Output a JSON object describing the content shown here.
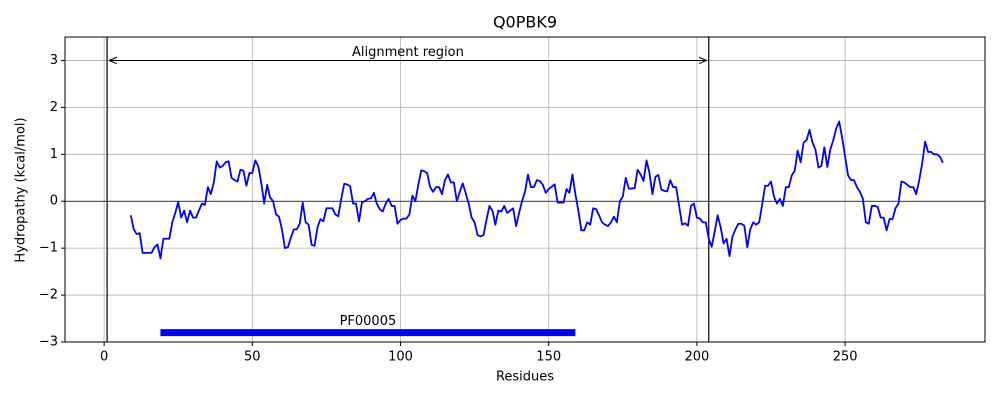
{
  "chart_data": {
    "type": "line",
    "title": "Q0PBK9",
    "x_label": "Residues",
    "y_label": "Hydropathy (kcal/mol)",
    "x": [
      9,
      10,
      11,
      12,
      13,
      14,
      15,
      16,
      17,
      18,
      19,
      20,
      21,
      22,
      23,
      24,
      25,
      26,
      27,
      28,
      29,
      30,
      31,
      32,
      33,
      34,
      35,
      36,
      37,
      38,
      39,
      40,
      41,
      42,
      43,
      44,
      45,
      46,
      47,
      48,
      49,
      50,
      51,
      52,
      53,
      54,
      55,
      56,
      57,
      58,
      59,
      60,
      61,
      62,
      63,
      64,
      65,
      66,
      67,
      68,
      69,
      70,
      71,
      72,
      73,
      74,
      75,
      76,
      77,
      78,
      79,
      80,
      81,
      82,
      83,
      84,
      85,
      86,
      87,
      88,
      89,
      90,
      91,
      92,
      93,
      94,
      95,
      96,
      97,
      98,
      99,
      100,
      101,
      102,
      103,
      104,
      105,
      106,
      107,
      108,
      109,
      110,
      111,
      112,
      113,
      114,
      115,
      116,
      117,
      118,
      119,
      120,
      121,
      122,
      123,
      124,
      125,
      126,
      127,
      128,
      129,
      130,
      131,
      132,
      133,
      134,
      135,
      136,
      137,
      138,
      139,
      140,
      141,
      142,
      143,
      144,
      145,
      146,
      147,
      148,
      149,
      150,
      151,
      152,
      153,
      154,
      155,
      156,
      157,
      158,
      159,
      160,
      161,
      162,
      163,
      164,
      165,
      166,
      167,
      168,
      169,
      170,
      171,
      172,
      173,
      174,
      175,
      176,
      177,
      178,
      179,
      180,
      181,
      182,
      183,
      184,
      185,
      186,
      187,
      188,
      189,
      190,
      191,
      192,
      193,
      194,
      195,
      196,
      197,
      198,
      199,
      200,
      201,
      202,
      203,
      204,
      205,
      206,
      207,
      208,
      209,
      210,
      211,
      212,
      213,
      214,
      215,
      216,
      217,
      218,
      219,
      220,
      221,
      222,
      223,
      224,
      225,
      226,
      227,
      228,
      229,
      230,
      231,
      232,
      233,
      234,
      235,
      236,
      237,
      238,
      239,
      240,
      241,
      242,
      243,
      244,
      245,
      246,
      247,
      248,
      249,
      250,
      251,
      252,
      253,
      254,
      255,
      256,
      257,
      258,
      259,
      260,
      261,
      262,
      263,
      264,
      265,
      266,
      267,
      268,
      269,
      270,
      271,
      272,
      273,
      274,
      275,
      276,
      277,
      278,
      279,
      280,
      281,
      282,
      283
    ],
    "values": [
      -0.3,
      -0.6,
      -0.7,
      -0.68,
      -1.1,
      -1.1,
      -1.1,
      -1.1,
      -0.98,
      -0.92,
      -1.22,
      -0.8,
      -0.8,
      -0.8,
      -0.45,
      -0.25,
      -0.02,
      -0.35,
      -0.2,
      -0.45,
      -0.2,
      -0.35,
      -0.35,
      -0.2,
      -0.05,
      -0.08,
      0.3,
      0.15,
      0.4,
      0.85,
      0.72,
      0.75,
      0.83,
      0.85,
      0.5,
      0.45,
      0.42,
      0.67,
      0.65,
      0.33,
      0.6,
      0.6,
      0.87,
      0.75,
      0.4,
      -0.05,
      0.35,
      0.08,
      0.0,
      -0.28,
      -0.33,
      -0.6,
      -1.0,
      -0.98,
      -0.78,
      -0.6,
      -0.6,
      -0.48,
      -0.03,
      -0.45,
      -0.5,
      -0.93,
      -0.95,
      -0.55,
      -0.38,
      -0.43,
      -0.15,
      -0.15,
      -0.15,
      -0.28,
      -0.32,
      0.05,
      0.37,
      0.36,
      0.32,
      -0.05,
      -0.05,
      -0.43,
      -0.02,
      0.0,
      0.05,
      0.06,
      0.18,
      -0.05,
      -0.17,
      -0.22,
      -0.05,
      0.05,
      -0.1,
      -0.1,
      -0.48,
      -0.4,
      -0.37,
      -0.37,
      -0.28,
      0.12,
      0.0,
      0.35,
      0.66,
      0.64,
      0.6,
      0.3,
      0.2,
      0.3,
      0.3,
      0.15,
      0.45,
      0.57,
      0.4,
      0.4,
      0.0,
      0.2,
      0.38,
      0.17,
      -0.05,
      -0.35,
      -0.45,
      -0.72,
      -0.75,
      -0.72,
      -0.4,
      -0.1,
      -0.2,
      -0.5,
      -0.2,
      -0.22,
      -0.1,
      -0.25,
      -0.2,
      -0.15,
      -0.53,
      -0.25,
      0.0,
      0.2,
      0.57,
      0.3,
      0.3,
      0.45,
      0.43,
      0.35,
      0.18,
      0.26,
      0.31,
      0.36,
      -0.03,
      -0.03,
      -0.03,
      0.26,
      0.18,
      0.57,
      0.15,
      -0.2,
      -0.62,
      -0.62,
      -0.45,
      -0.5,
      -0.15,
      -0.17,
      -0.3,
      -0.45,
      -0.5,
      -0.53,
      -0.45,
      -0.33,
      -0.45,
      0.0,
      0.1,
      0.5,
      0.27,
      0.27,
      0.28,
      0.67,
      0.57,
      0.43,
      0.87,
      0.6,
      0.15,
      0.52,
      0.56,
      0.25,
      0.22,
      0.21,
      0.45,
      0.3,
      0.3,
      -0.1,
      -0.5,
      -0.47,
      -0.52,
      -0.1,
      -0.05,
      -0.35,
      -0.37,
      -0.45,
      -0.45,
      -0.8,
      -0.97,
      -0.65,
      -0.3,
      -0.55,
      -0.9,
      -0.8,
      -1.17,
      -0.75,
      -0.6,
      -0.48,
      -0.48,
      -0.52,
      -0.98,
      -0.6,
      -0.45,
      -0.5,
      -0.45,
      -0.08,
      0.33,
      0.33,
      0.42,
      0.1,
      -0.05,
      0.05,
      -0.1,
      0.3,
      0.3,
      0.55,
      0.65,
      1.08,
      0.83,
      1.25,
      1.3,
      1.52,
      1.25,
      1.1,
      0.72,
      0.75,
      1.15,
      0.73,
      1.1,
      1.3,
      1.55,
      1.7,
      1.35,
      0.95,
      0.55,
      0.45,
      0.45,
      0.3,
      0.2,
      0.05,
      -0.45,
      -0.48,
      -0.1,
      -0.1,
      -0.12,
      -0.35,
      -0.35,
      -0.62,
      -0.38,
      -0.38,
      -0.15,
      -0.05,
      0.42,
      0.4,
      0.35,
      0.3,
      0.3,
      0.15,
      0.45,
      0.8,
      1.27,
      1.05,
      1.05,
      1.0,
      1.0,
      0.95,
      0.82
    ],
    "color": "#0000ff",
    "xlim": [
      -13.2,
      297.2
    ],
    "ylim": [
      -3,
      3.5
    ],
    "xticks": [
      0,
      50,
      100,
      150,
      200,
      250
    ],
    "yticks": [
      {
        "value": -3,
        "label": "−3"
      },
      {
        "value": -2,
        "label": "−2"
      },
      {
        "value": -1,
        "label": "−1"
      },
      0,
      1,
      2,
      3
    ],
    "grid": true,
    "zero_line": 0,
    "alignment_region": {
      "label": "Alignment region",
      "start": 1,
      "end": 204,
      "y": 3
    },
    "domains": [
      {
        "label": "PF00005",
        "start": 19,
        "end": 159,
        "y": -2.8,
        "color": "#0000ff"
      }
    ]
  }
}
